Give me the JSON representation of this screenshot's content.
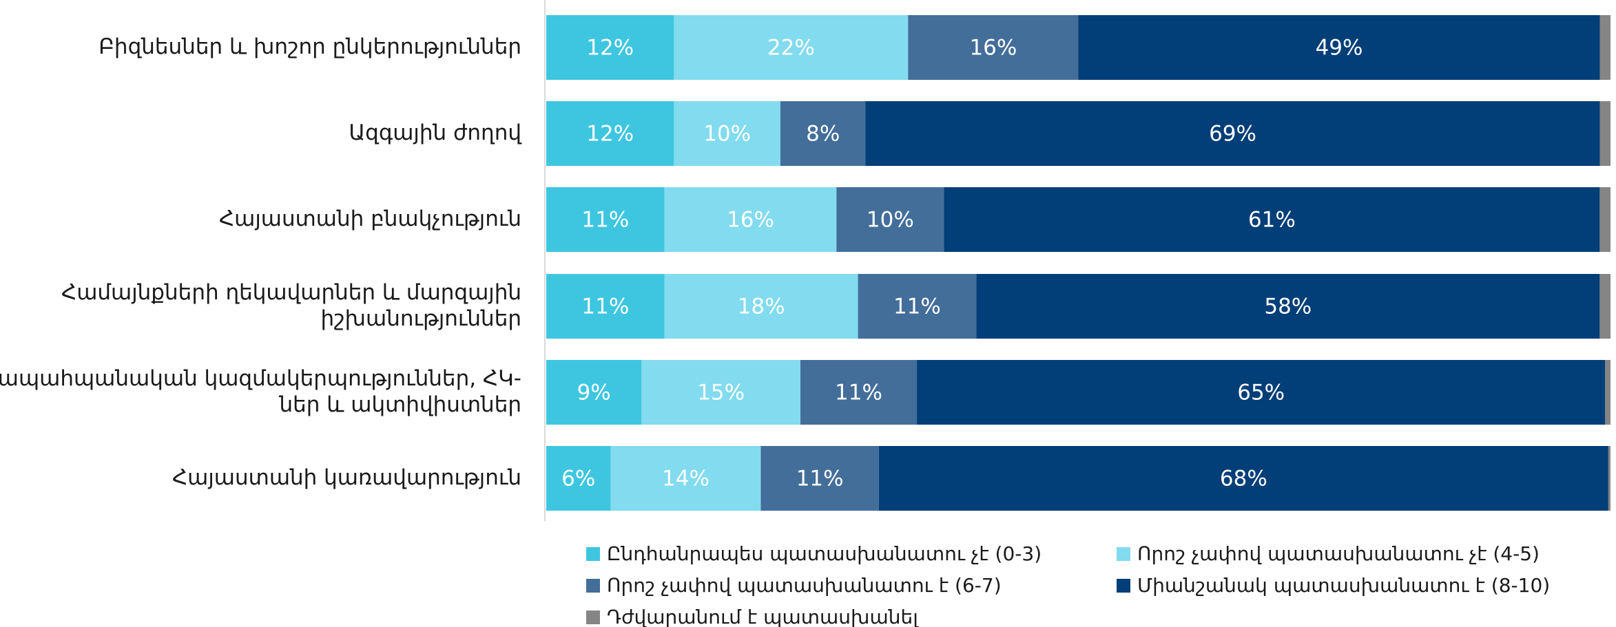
{
  "chart_data": {
    "type": "bar",
    "orientation": "horizontal",
    "stacked": true,
    "grid": false,
    "legend_position": "bottom",
    "categories": [
      "Բիզնեսներ և խոշոր ընկերություններ",
      "Ազգային ժողով",
      "Հայաստանի բնակչություն",
      "Համայնքների ղեկավարներ և մարզային իշխանություններ",
      "Բնապահպանական կազմակերպություններ, ՀԿ-ներ և ակտիվիստներ",
      "Հայաստանի կառավարություն"
    ],
    "category_lines": [
      [
        "Բիզնեսներ և խոշոր ընկերություններ"
      ],
      [
        "Ազգային ժողով"
      ],
      [
        "Հայաստանի բնակչություն"
      ],
      [
        "Համայնքների ղեկավարներ և մարզային",
        "իշխանություններ"
      ],
      [
        "Բնապահպանական կազմակերպություններ, ՀԿ-",
        "ներ և ակտիվիստներ"
      ],
      [
        "Հայաստանի կառավարություն"
      ]
    ],
    "series": [
      {
        "name": "Ընդհանրապես պատասխանատու չէ (0-3)",
        "color": "#3ec6e0",
        "values": [
          12,
          12,
          11,
          11,
          9,
          6
        ]
      },
      {
        "name": "Որոշ չափով  պատասխանատու չէ (4-5)",
        "color": "#82dbee",
        "values": [
          22,
          10,
          16,
          18,
          15,
          14
        ]
      },
      {
        "name": "Որոշ չափով  պատասխանատու է (6-7)",
        "color": "#436e9a",
        "values": [
          16,
          8,
          10,
          11,
          11,
          11
        ]
      },
      {
        "name": "Միանշանակ պատասխանատու է (8-10)",
        "color": "#023e77",
        "values": [
          49,
          69,
          61,
          58,
          65,
          68
        ]
      },
      {
        "name": "Դժվարանում է պատասխանել",
        "color": "#858585",
        "values": [
          1,
          1,
          1,
          1,
          0.5,
          0.2
        ]
      }
    ],
    "value_labels": [
      [
        "12%",
        "22%",
        "16%",
        "49%"
      ],
      [
        "12%",
        "10%",
        "8%",
        "69%"
      ],
      [
        "11%",
        "16%",
        "10%",
        "61%"
      ],
      [
        "11%",
        "18%",
        "11%",
        "58%"
      ],
      [
        "9%",
        "15%",
        "11%",
        "65%"
      ],
      [
        "6%",
        "14%",
        "11%",
        "68%"
      ]
    ]
  }
}
